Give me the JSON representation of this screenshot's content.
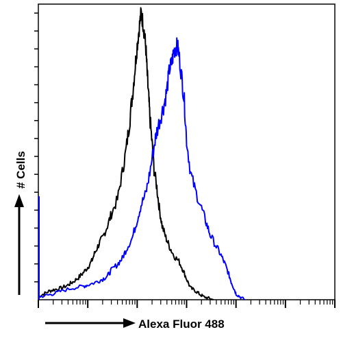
{
  "chart_data": {
    "type": "line",
    "title": "",
    "xlabel": "Alexa Fluor 488",
    "ylabel": "# Cells",
    "x_scale": "log",
    "xlim": [
      1,
      1000000
    ],
    "ylim": [
      0,
      100
    ],
    "x_tick_labels": [],
    "y_tick_labels": [],
    "grid": false,
    "legend": "none",
    "series": [
      {
        "color": "#000000",
        "x": [
          1,
          1.3,
          1.7,
          2.2,
          3,
          4,
          5,
          6.5,
          8,
          10,
          12,
          14,
          17,
          20,
          25,
          30,
          40,
          50,
          60,
          70,
          80,
          90,
          100,
          110,
          120,
          130,
          140,
          150,
          160,
          170,
          180,
          200,
          220,
          250,
          280,
          320,
          380,
          450,
          550,
          700,
          850,
          1000,
          1200,
          1500,
          1800,
          2200,
          2800,
          3500
        ],
        "y": [
          1,
          2,
          3,
          3.5,
          4,
          5,
          6,
          7.5,
          9,
          11,
          13,
          16,
          19,
          21,
          25,
          29,
          34,
          43,
          51,
          60,
          69,
          78,
          86,
          92,
          97,
          94,
          90,
          85,
          76,
          69,
          62,
          53,
          44,
          38,
          31,
          25,
          21,
          18,
          15,
          13,
          10,
          7,
          4,
          3,
          2,
          1,
          0.5,
          0
        ]
      },
      {
        "color": "#0000ff",
        "x": [
          1,
          1.5,
          2,
          3,
          5,
          8,
          10,
          15,
          20,
          25,
          30,
          40,
          50,
          60,
          80,
          100,
          120,
          150,
          180,
          220,
          250,
          300,
          350,
          400,
          450,
          500,
          550,
          600,
          650,
          700,
          800,
          900,
          1000,
          1200,
          1500,
          2000,
          2500,
          3000,
          4000,
          5000,
          6000,
          7000,
          8000,
          9000,
          10000,
          12000,
          15000
        ],
        "y": [
          1,
          1.5,
          2,
          3,
          4,
          4.5,
          5,
          6,
          7,
          8,
          10,
          12,
          14,
          17,
          21,
          27,
          32,
          36,
          43,
          52,
          57,
          62,
          66,
          71,
          78,
          80,
          84,
          85,
          86,
          83,
          75,
          67,
          54,
          43,
          37,
          31,
          26,
          22,
          18,
          15,
          12,
          9,
          6,
          4,
          2,
          1,
          0
        ]
      }
    ]
  }
}
